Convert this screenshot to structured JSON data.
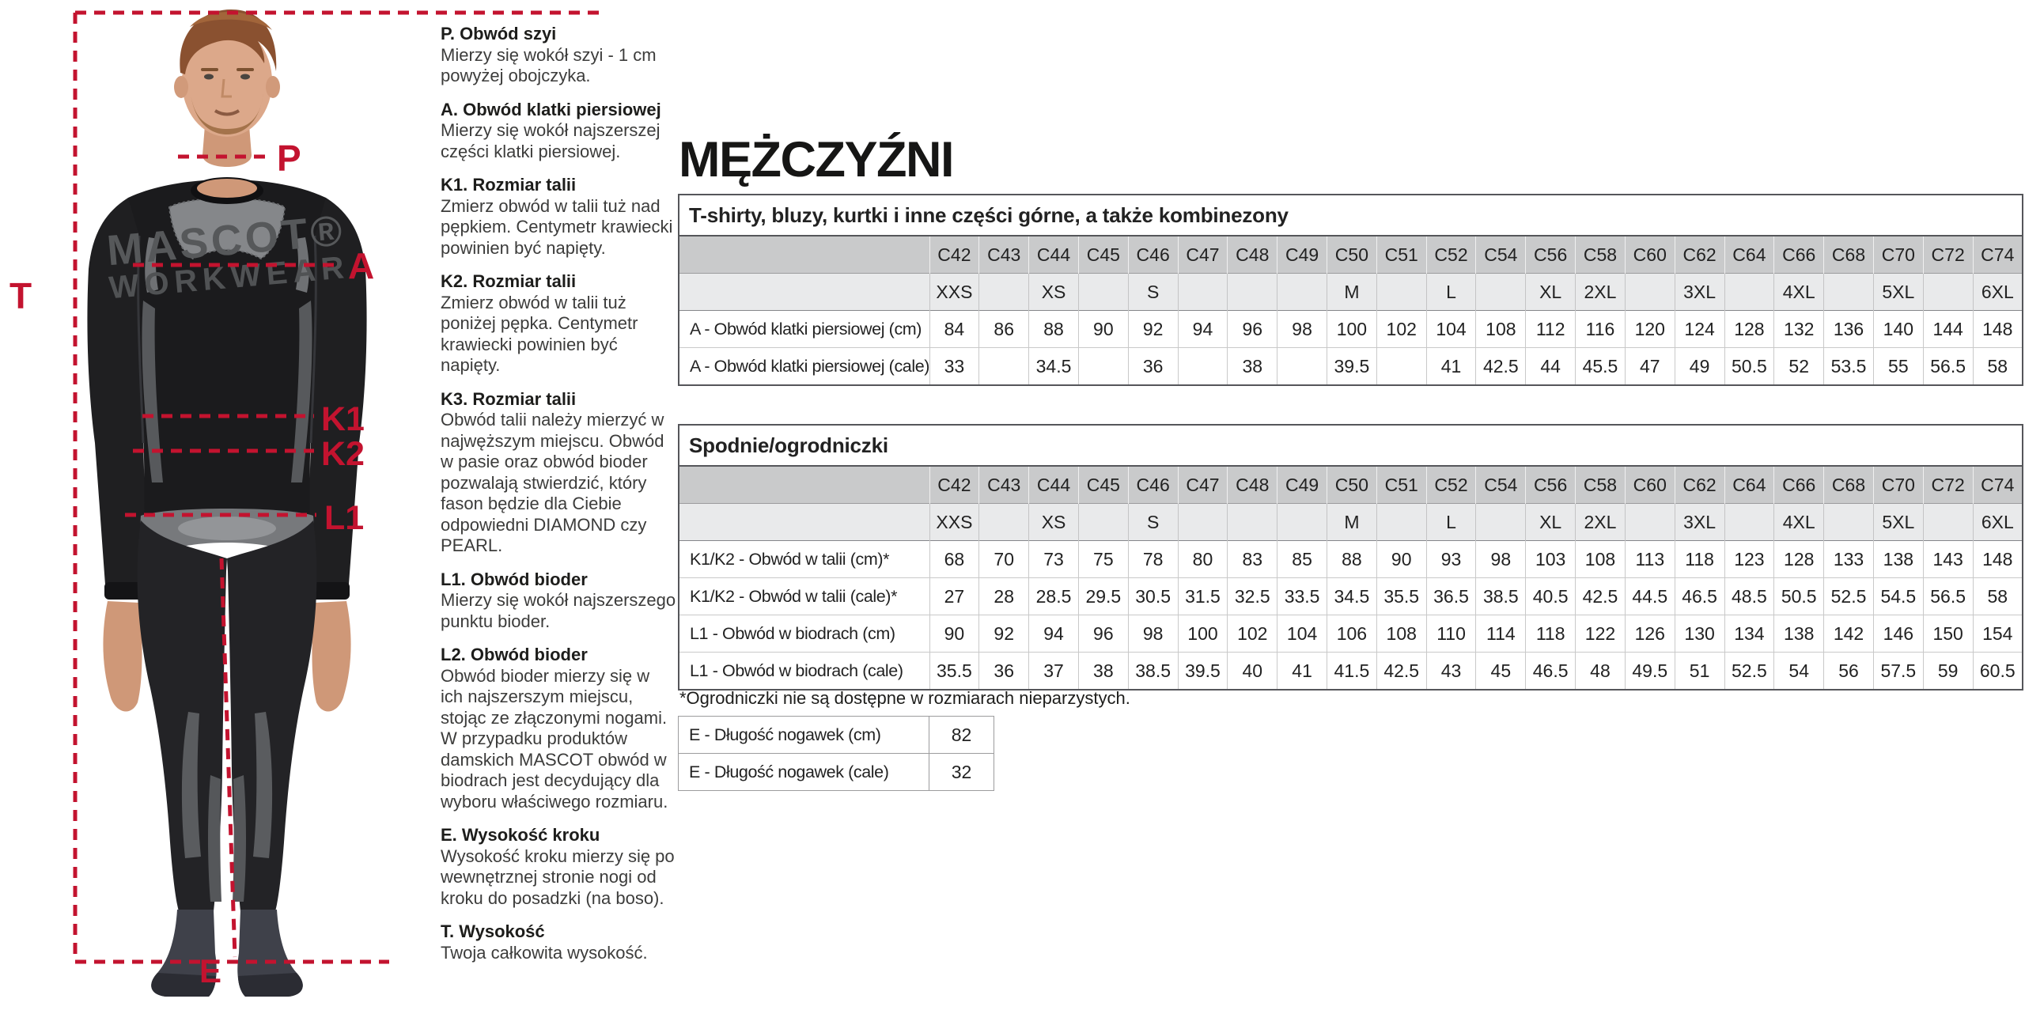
{
  "colors": {
    "accent_red": "#c3132f",
    "header_bg": "#c9cacb",
    "subheader_bg": "#e9eaeb"
  },
  "figure": {
    "logo_line1": "MASCOT®",
    "logo_line2": "WORKWEAR",
    "labels": {
      "p": "P",
      "a": "A",
      "k1": "K1",
      "k2": "K2",
      "l1": "L1",
      "t": "T",
      "e": "E"
    }
  },
  "guide": {
    "sections": [
      {
        "title": "P. Obwód szyi",
        "body": "Mierzy się wokół szyi - 1 cm powyżej obojczyka."
      },
      {
        "title": "A. Obwód klatki piersiowej",
        "body": "Mierzy się wokół najszerszej części klatki piersiowej."
      },
      {
        "title": "K1. Rozmiar talii",
        "body": "Zmierz obwód w talii tuż nad pępkiem. Centymetr krawiecki powinien być napięty."
      },
      {
        "title": "K2. Rozmiar talii",
        "body": "Zmierz obwód w talii tuż poniżej pępka. Centymetr krawiecki powinien być napięty."
      },
      {
        "title": "K3. Rozmiar talii",
        "body": "Obwód talii należy mierzyć w najwęższym miejscu. Obwód w pasie oraz obwód bioder pozwalają stwierdzić, który fason będzie dla Ciebie odpowiedni  DIAMOND czy PEARL."
      },
      {
        "title": "L1. Obwód bioder",
        "body": "Mierzy się wokół najszerszego punktu bioder."
      },
      {
        "title": "L2. Obwód bioder",
        "body": "Obwód bioder mierzy się w ich najszerszym miejscu, stojąc ze złączonymi nogami. W przypadku produktów damskich MASCOT obwód w biodrach jest decydujący dla wyboru właściwego rozmiaru."
      },
      {
        "title": "E. Wysokość kroku",
        "body": "Wysokość kroku mierzy się po wewnętrznej stronie nogi od kroku do posadzki (na boso)."
      },
      {
        "title": "T. Wysokość",
        "body": "Twoja całkowita wysokość."
      }
    ]
  },
  "main": {
    "page_title": "MĘŻCZYŹNI",
    "footnote": "*Ogrodniczki nie są dostępne w rozmiarach nieparzystych.",
    "upper_table": {
      "title": "T-shirty, bluzy, kurtki i inne części górne, a także kombinezony",
      "size_codes": [
        "C42",
        "C43",
        "C44",
        "C45",
        "C46",
        "C47",
        "C48",
        "C49",
        "C50",
        "C51",
        "C52",
        "C54",
        "C56",
        "C58",
        "C60",
        "C62",
        "C64",
        "C66",
        "C68",
        "C70",
        "C72",
        "C74"
      ],
      "letter_sizes": [
        "XXS",
        "",
        "XS",
        "",
        "S",
        "",
        "",
        "",
        "M",
        "",
        "L",
        "",
        "XL",
        "2XL",
        "",
        "3XL",
        "",
        "4XL",
        "",
        "5XL",
        "",
        "6XL"
      ],
      "rows": [
        {
          "label": "A - Obwód klatki piersiowej (cm)",
          "values": [
            "84",
            "86",
            "88",
            "90",
            "92",
            "94",
            "96",
            "98",
            "100",
            "102",
            "104",
            "108",
            "112",
            "116",
            "120",
            "124",
            "128",
            "132",
            "136",
            "140",
            "144",
            "148"
          ]
        },
        {
          "label": "A - Obwód klatki piersiowej (cale)",
          "values": [
            "33",
            "",
            "34.5",
            "",
            "36",
            "",
            "38",
            "",
            "39.5",
            "",
            "41",
            "42.5",
            "44",
            "45.5",
            "47",
            "49",
            "50.5",
            "52",
            "53.5",
            "55",
            "56.5",
            "58"
          ]
        }
      ]
    },
    "lower_table": {
      "title": "Spodnie/ogrodniczki",
      "size_codes": [
        "C42",
        "C43",
        "C44",
        "C45",
        "C46",
        "C47",
        "C48",
        "C49",
        "C50",
        "C51",
        "C52",
        "C54",
        "C56",
        "C58",
        "C60",
        "C62",
        "C64",
        "C66",
        "C68",
        "C70",
        "C72",
        "C74"
      ],
      "letter_sizes": [
        "XXS",
        "",
        "XS",
        "",
        "S",
        "",
        "",
        "",
        "M",
        "",
        "L",
        "",
        "XL",
        "2XL",
        "",
        "3XL",
        "",
        "4XL",
        "",
        "5XL",
        "",
        "6XL"
      ],
      "rows": [
        {
          "label": "K1/K2 - Obwód w talii (cm)*",
          "values": [
            "68",
            "70",
            "73",
            "75",
            "78",
            "80",
            "83",
            "85",
            "88",
            "90",
            "93",
            "98",
            "103",
            "108",
            "113",
            "118",
            "123",
            "128",
            "133",
            "138",
            "143",
            "148"
          ]
        },
        {
          "label": "K1/K2 - Obwód w talii (cale)*",
          "values": [
            "27",
            "28",
            "28.5",
            "29.5",
            "30.5",
            "31.5",
            "32.5",
            "33.5",
            "34.5",
            "35.5",
            "36.5",
            "38.5",
            "40.5",
            "42.5",
            "44.5",
            "46.5",
            "48.5",
            "50.5",
            "52.5",
            "54.5",
            "56.5",
            "58"
          ]
        },
        {
          "label": "L1 - Obwód w biodrach (cm)",
          "values": [
            "90",
            "92",
            "94",
            "96",
            "98",
            "100",
            "102",
            "104",
            "106",
            "108",
            "110",
            "114",
            "118",
            "122",
            "126",
            "130",
            "134",
            "138",
            "142",
            "146",
            "150",
            "154"
          ]
        },
        {
          "label": "L1 - Obwód w biodrach (cale)",
          "values": [
            "35.5",
            "36",
            "37",
            "38",
            "38.5",
            "39.5",
            "40",
            "41",
            "41.5",
            "42.5",
            "43",
            "45",
            "46.5",
            "48",
            "49.5",
            "51",
            "52.5",
            "54",
            "56",
            "57.5",
            "59",
            "60.5"
          ]
        }
      ]
    },
    "leg_table": {
      "rows": [
        {
          "label": "E - Długość nogawek (cm)",
          "values": [
            "82"
          ]
        },
        {
          "label": "E - Długość nogawek (cale)",
          "values": [
            "32"
          ]
        }
      ]
    }
  }
}
